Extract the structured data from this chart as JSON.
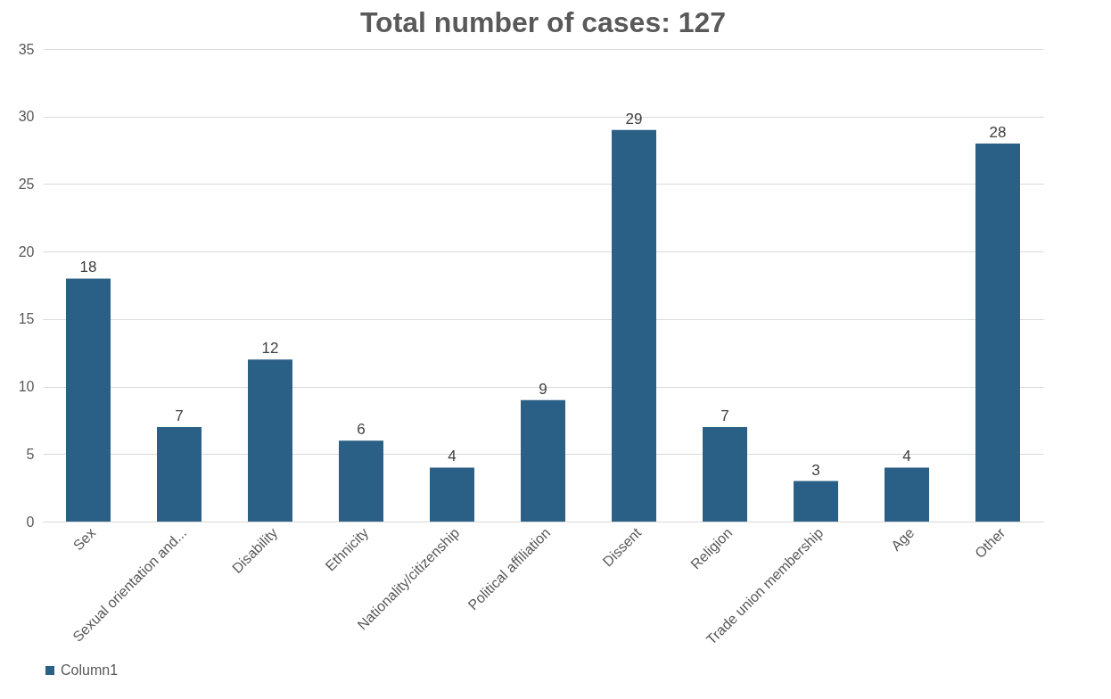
{
  "chart_data": {
    "type": "bar",
    "title": "Total number of cases: 127",
    "categories": [
      "Sex",
      "Sexual orientation and...",
      "Disability",
      "Ethnicity",
      "Nationality/citizenship",
      "Political affiliation",
      "Dissent",
      "Religion",
      "Trade union membership",
      "Age",
      "Other"
    ],
    "series": [
      {
        "name": "Column1",
        "color": "#2a5f86",
        "values": [
          18,
          7,
          12,
          6,
          4,
          9,
          29,
          7,
          3,
          4,
          28
        ]
      }
    ],
    "ylim": [
      0,
      35
    ],
    "yticks": [
      0,
      5,
      10,
      15,
      20,
      25,
      30,
      35
    ],
    "grid": "y",
    "legend": "bottom",
    "data_labels": true
  }
}
